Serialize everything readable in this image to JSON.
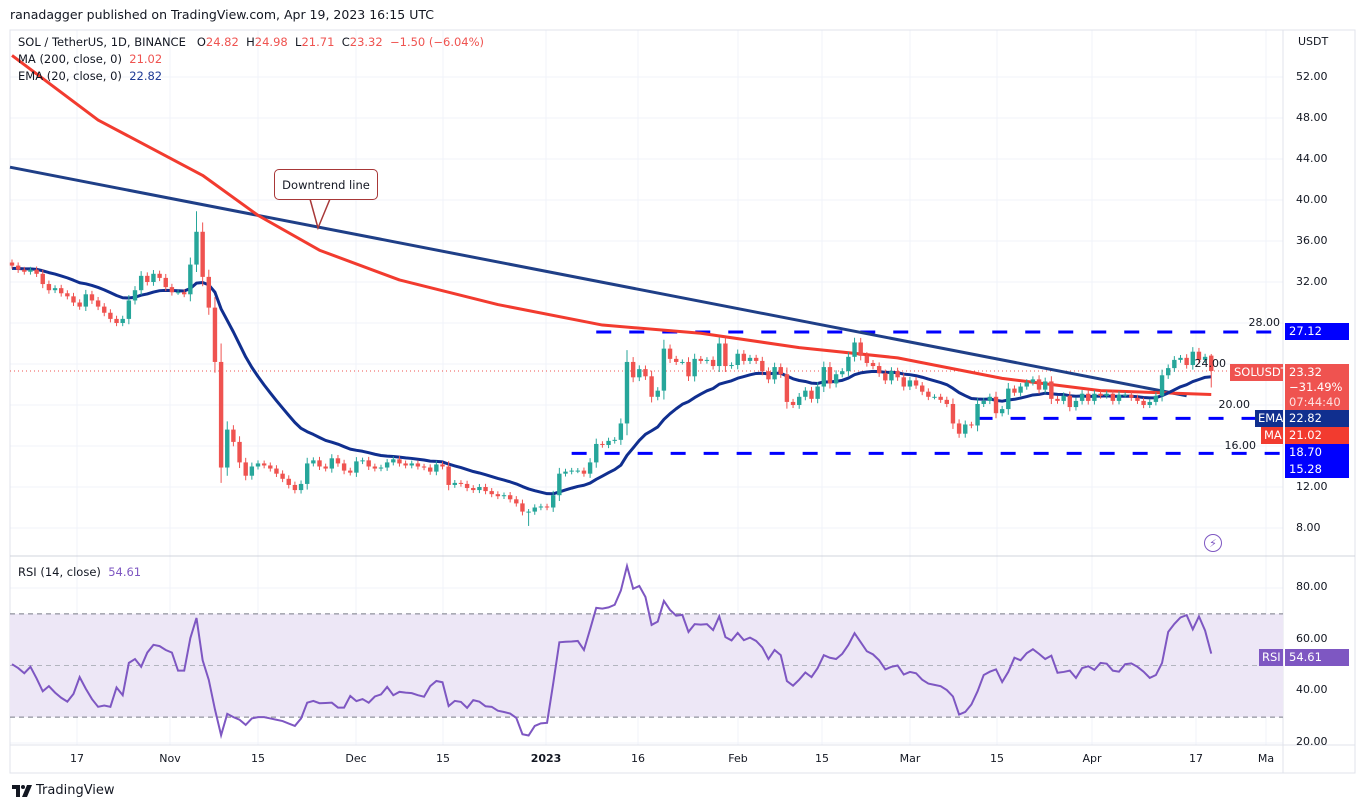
{
  "header": {
    "published": "ranadagger published on TradingView.com, Apr 19, 2023 16:15 UTC",
    "symbol": "SOL / TetherUS, 1D, BINANCE",
    "o_label": "O",
    "o": "24.82",
    "h_label": "H",
    "h": "24.98",
    "l_label": "L",
    "l": "21.71",
    "c_label": "C",
    "c": "23.32",
    "change": "−1.50 (−6.04%)",
    "ma_label": "MA (200, close, 0)",
    "ma_value": "21.02",
    "ema_label": "EMA (20, close, 0)",
    "ema_value": "22.82",
    "rsi_label": "RSI (14, close)",
    "rsi_value": "54.61"
  },
  "annotation": {
    "callout": "Downtrend line"
  },
  "tags": {
    "level_high": "27.12",
    "symbol": "SOLUSDT",
    "price": "23.32",
    "pct": "−31.49%",
    "countdown": "07:44:40",
    "ema_name": "EMA",
    "ema": "22.82",
    "ma_name": "MA",
    "ma": "21.02",
    "level_mid": "18.70",
    "level_low": "15.28",
    "rsi_name": "RSI",
    "rsi": "54.61"
  },
  "footer": {
    "brand": "TradingView"
  },
  "icons": {
    "lightning": "lightning-icon",
    "logo": "tradingview-logo"
  },
  "colors": {
    "up": "#26a69a",
    "down": "#ef5350",
    "ma": "#f23b2f",
    "ema": "#102f8f",
    "trendline": "#1f3f87",
    "levels": "#0000ff",
    "rsi": "#7e57c2",
    "rsi_band": "#ede7f6"
  },
  "chart_data": [
    {
      "type": "candlestick",
      "title": "SOL / TetherUS, 1D, BINANCE",
      "ylabel": "USDT",
      "ylim": [
        6,
        56
      ],
      "yticks": [
        "52.00",
        "48.00",
        "44.00",
        "40.00",
        "36.00",
        "32.00",
        "28.00",
        "24.00",
        "20.00",
        "16.00",
        "12.00",
        "8.00"
      ],
      "xticks": [
        "17",
        "Nov",
        "15",
        "Dec",
        "15",
        "2023",
        "16",
        "Feb",
        "15",
        "Mar",
        "15",
        "Apr",
        "17",
        "Ma"
      ],
      "grid": true,
      "closes": [
        33.6,
        33.2,
        33.0,
        33.2,
        32.8,
        31.8,
        31.2,
        31.4,
        30.9,
        30.6,
        30.0,
        29.6,
        30.8,
        30.2,
        29.6,
        29.0,
        28.4,
        28.0,
        28.4,
        30.2,
        31.2,
        32.6,
        32.0,
        32.8,
        32.4,
        31.5,
        31.0,
        31.0,
        30.8,
        33.7,
        36.9,
        32.5,
        29.5,
        24.2,
        13.9,
        17.6,
        16.4,
        14.4,
        13.1,
        14.0,
        14.3,
        14.1,
        13.8,
        13.3,
        12.8,
        12.2,
        11.7,
        12.3,
        14.3,
        14.6,
        14.0,
        13.8,
        14.8,
        14.3,
        13.6,
        13.4,
        14.5,
        14.6,
        14.0,
        13.8,
        13.9,
        14.4,
        14.7,
        14.3,
        14.1,
        14.3,
        14.0,
        13.9,
        13.5,
        14.2,
        14.0,
        12.2,
        12.4,
        12.3,
        11.9,
        11.7,
        12.0,
        11.6,
        11.3,
        11.1,
        11.2,
        10.8,
        10.4,
        9.6,
        9.6,
        10.0,
        10.1,
        10.0,
        11.2,
        13.3,
        13.5,
        13.6,
        13.6,
        13.3,
        14.4,
        16.2,
        16.1,
        16.5,
        16.6,
        18.2,
        24.2,
        22.7,
        23.5,
        22.8,
        20.8,
        21.4,
        25.5,
        24.5,
        24.2,
        24.2,
        22.8,
        24.5,
        24.3,
        24.4,
        23.8,
        26.0,
        23.8,
        23.9,
        25.0,
        24.3,
        24.6,
        24.3,
        23.3,
        22.5,
        23.7,
        23.0,
        20.3,
        20.0,
        20.8,
        21.4,
        20.6,
        21.8,
        23.7,
        22.1,
        23.0,
        23.3,
        24.7,
        26.1,
        24.8,
        24.1,
        23.8,
        23.1,
        22.4,
        23.3,
        22.7,
        21.8,
        22.4,
        21.9,
        21.3,
        20.8,
        20.8,
        20.5,
        20.1,
        18.2,
        17.2,
        18.1,
        18.0,
        20.1,
        20.4,
        20.8,
        19.2,
        19.6,
        21.6,
        21.2,
        21.8,
        22.2,
        22.5,
        21.5,
        22.3,
        20.6,
        20.4,
        20.9,
        19.8,
        20.4,
        21.1,
        20.4,
        21.1,
        20.9,
        21.1,
        20.4,
        21.0,
        21.0,
        20.7,
        20.4,
        20.0,
        20.3,
        20.9,
        22.9,
        23.6,
        24.4,
        24.6,
        23.9,
        25.2,
        24.4,
        24.7,
        23.32
      ],
      "last_candle": {
        "open": 24.82,
        "high": 24.98,
        "low": 21.71,
        "close": 23.32
      },
      "notable_wicks": [
        {
          "index": 30,
          "high": 38.9
        },
        {
          "index": 34,
          "low": 12.4
        },
        {
          "index": 84,
          "low": 8.2
        }
      ],
      "ma200": [
        [
          0,
          54.1
        ],
        [
          14,
          47.8
        ],
        [
          31,
          42.4
        ],
        [
          40,
          38.5
        ],
        [
          50,
          35.1
        ],
        [
          63,
          32.2
        ],
        [
          79,
          29.8
        ],
        [
          96,
          27.8
        ],
        [
          112,
          27.0
        ],
        [
          128,
          25.6
        ],
        [
          144,
          24.6
        ],
        [
          161,
          22.6
        ],
        [
          177,
          21.4
        ],
        [
          195,
          21.02
        ]
      ],
      "ema20_last": 22.82,
      "trendline": {
        "label": "Downtrend line",
        "points": [
          [
            0,
            43.2
          ],
          [
            191,
            20.9
          ]
        ]
      },
      "levels": [
        {
          "value": 27.12,
          "from": 95
        },
        {
          "value": 18.7,
          "from": 157
        },
        {
          "value": 15.28,
          "from": 91
        }
      ],
      "last_price": 23.32
    },
    {
      "type": "line",
      "title": "RSI (14, close)",
      "ylim": [
        18,
        92
      ],
      "yticks": [
        "80.00",
        "60.00",
        "40.00",
        "20.00"
      ],
      "band": [
        30,
        70
      ],
      "midline": 50,
      "values": [
        50.5,
        49,
        47,
        49.5,
        45,
        40,
        42,
        39.5,
        37.5,
        36,
        39,
        45.5,
        41,
        37,
        34,
        34.5,
        34,
        41.5,
        38.5,
        51,
        52.5,
        49.5,
        55,
        58,
        57.5,
        56,
        55,
        48,
        48,
        60.6,
        68.4,
        52,
        44.4,
        33,
        23,
        31.3,
        30,
        29,
        27,
        29.5,
        30,
        30,
        29.5,
        29,
        28.5,
        27.5,
        26.6,
        29.5,
        35.6,
        36.3,
        35.4,
        35.5,
        35.6,
        33.7,
        33.7,
        38.2,
        36.2,
        37,
        35.6,
        38,
        38.8,
        41.7,
        38.5,
        39.8,
        39.5,
        39.3,
        38.5,
        37.9,
        42,
        44,
        43.5,
        34.3,
        36.3,
        35.9,
        33.6,
        36.6,
        36,
        34.2,
        34,
        32.5,
        32,
        31.4,
        29.7,
        23.4,
        22.9,
        26.6,
        27.6,
        27.8,
        43,
        59,
        59.2,
        59.3,
        59.5,
        56,
        64,
        72.3,
        72,
        72.5,
        73.5,
        79,
        88.5,
        79.7,
        80.8,
        76.5,
        65.7,
        67,
        75,
        71.5,
        69.3,
        69.6,
        63,
        66,
        65.8,
        66,
        63.7,
        69,
        61,
        59.7,
        62.6,
        59.8,
        60.8,
        59.5,
        57,
        52.5,
        56,
        54,
        44,
        42.2,
        44.5,
        47.3,
        45.5,
        49,
        54,
        53,
        52.5,
        54.5,
        58,
        62.5,
        59,
        55.5,
        54.3,
        52,
        48.5,
        49.5,
        50,
        46.5,
        47.5,
        47,
        44.5,
        43,
        42.5,
        42,
        40.5,
        38,
        31,
        32,
        34.9,
        40,
        46.3,
        47.6,
        48.5,
        43.6,
        47.5,
        53,
        52,
        54.8,
        56.3,
        54.5,
        52.5,
        53.8,
        47.2,
        47.5,
        48,
        45.2,
        49,
        49.7,
        48.3,
        51,
        50.7,
        48,
        47.6,
        50.5,
        50.8,
        49.5,
        47.6,
        45.2,
        46.3,
        51,
        63,
        66.1,
        68.6,
        69.5,
        64,
        69,
        63.5,
        54.61
      ]
    }
  ]
}
